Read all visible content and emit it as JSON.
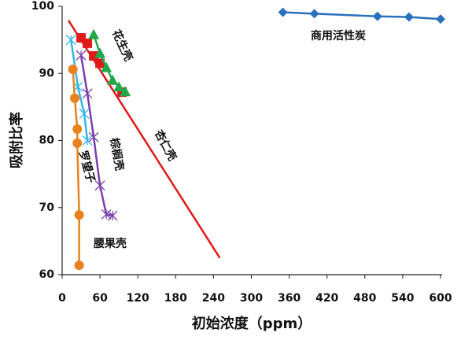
{
  "chart_data": {
    "type": "scatter",
    "x_label": "初始浓度（ppm）",
    "y_label": "吸附比率",
    "xlim": [
      0,
      600
    ],
    "xticks": [
      0,
      60,
      120,
      180,
      240,
      300,
      360,
      420,
      480,
      540,
      600
    ],
    "ylim": [
      60,
      100
    ],
    "yticks": [
      60,
      70,
      80,
      90,
      100
    ],
    "grid": false,
    "series": [
      {
        "name": "商用活性炭",
        "color": "#2a6fbd",
        "marker": "diamond",
        "line": true,
        "x": [
          350,
          400,
          500,
          550,
          600
        ],
        "values": [
          99.1,
          98.9,
          98.5,
          98.4,
          98.1
        ]
      },
      {
        "name": "杏仁壳",
        "color": "#e0191a",
        "marker": "square",
        "line": false,
        "x": [
          30,
          40,
          50,
          60,
          95
        ],
        "values": [
          95.3,
          94.5,
          92.6,
          91.5,
          87.2
        ],
        "trendline": {
          "x": [
            10,
            250
          ],
          "values": [
            97.9,
            62.5
          ]
        }
      },
      {
        "name": "花生壳",
        "color": "#22a84a",
        "marker": "triangle",
        "line": true,
        "x": [
          50,
          60,
          70,
          80,
          90,
          100
        ],
        "values": [
          95.8,
          93,
          90.9,
          89,
          88,
          87.3
        ]
      },
      {
        "name": "棕榈壳",
        "color": "#7a3fb0",
        "marker": "cross",
        "line": true,
        "x": [
          30,
          40,
          50,
          60,
          70,
          80
        ],
        "values": [
          92.7,
          87,
          80.5,
          73.3,
          69,
          68.8
        ]
      },
      {
        "name": "罗望子",
        "color": "#35b6e8",
        "marker": "cross",
        "line": true,
        "x": [
          14,
          25,
          35,
          40
        ],
        "values": [
          95,
          88,
          84,
          80
        ]
      },
      {
        "name": "腰果壳",
        "color": "#e8821e",
        "marker": "circle",
        "line": true,
        "x": [
          17,
          20,
          24,
          24,
          27,
          27
        ],
        "values": [
          90.6,
          86.3,
          81.7,
          79.6,
          68.9,
          61.4
        ]
      }
    ]
  }
}
